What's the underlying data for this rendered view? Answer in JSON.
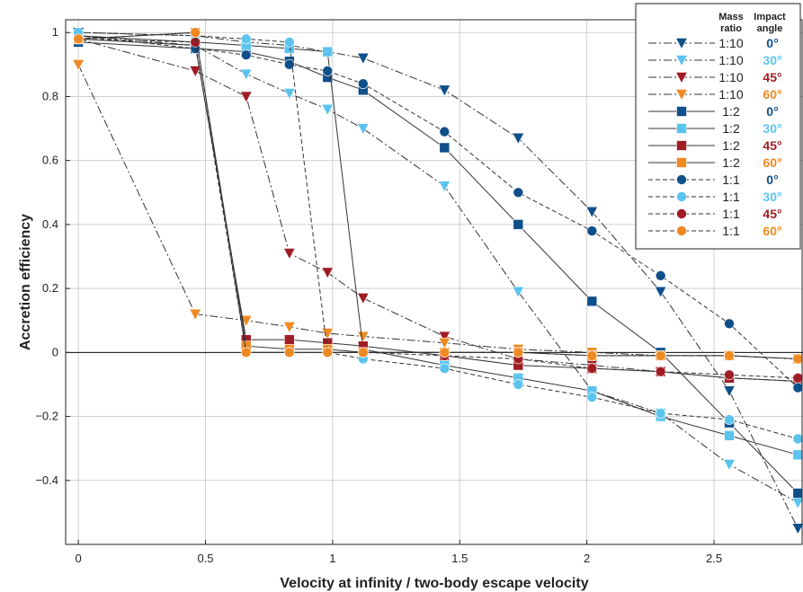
{
  "chart_data": {
    "type": "line",
    "xlabel": "Velocity at infinity / two-body escape velocity",
    "ylabel": "Accretion efficiency",
    "xlim": [
      -0.05,
      2.85
    ],
    "ylim": [
      -0.6,
      1.04
    ],
    "xticks": [
      0,
      0.5,
      1,
      1.5,
      2,
      2.5
    ],
    "xtick_labels": [
      "0",
      "0.5",
      "1",
      "1.5",
      "2",
      "2.5"
    ],
    "yticks": [
      -0.4,
      -0.2,
      0,
      0.2,
      0.4,
      0.6,
      0.8,
      1
    ],
    "ytick_labels": [
      "−0.4",
      "−0.2",
      "0",
      "0.2",
      "0.4",
      "0.6",
      "0.8",
      "1"
    ],
    "grid": true,
    "legend": {
      "position": "top-right",
      "header_ratio": [
        "Mass",
        "ratio"
      ],
      "header_angle": [
        "Impact",
        "angle"
      ]
    },
    "colors": {
      "angle_0": "#0f4f8a",
      "angle_30": "#5bc4ee",
      "angle_45": "#a01c24",
      "angle_60": "#ef8a22"
    },
    "series": [
      {
        "ratio": "1:10",
        "angle": "0°",
        "marker": "triangle-down",
        "line": "dashdot",
        "color": "#0f4f8a",
        "x": [
          0,
          0.46,
          0.66,
          0.83,
          0.98,
          1.12,
          1.44,
          1.73,
          2.02,
          2.29,
          2.56,
          2.83
        ],
        "y": [
          1.0,
          0.99,
          0.97,
          0.96,
          0.94,
          0.92,
          0.82,
          0.67,
          0.44,
          0.19,
          -0.12,
          -0.55
        ]
      },
      {
        "ratio": "1:10",
        "angle": "30°",
        "marker": "triangle-down",
        "line": "dashdot",
        "color": "#5bc4ee",
        "x": [
          0,
          0.46,
          0.66,
          0.83,
          0.98,
          1.12,
          1.44,
          1.73,
          2.02,
          2.29,
          2.56,
          2.83
        ],
        "y": [
          0.99,
          0.96,
          0.87,
          0.81,
          0.76,
          0.7,
          0.52,
          0.19,
          -0.12,
          -0.19,
          -0.35,
          -0.47
        ]
      },
      {
        "ratio": "1:10",
        "angle": "45°",
        "marker": "triangle-down",
        "line": "dashdot",
        "color": "#a01c24",
        "x": [
          0,
          0.46,
          0.66,
          0.83,
          0.98,
          1.12,
          1.44,
          1.73,
          2.02,
          2.29,
          2.56,
          2.83
        ],
        "y": [
          0.98,
          0.88,
          0.8,
          0.31,
          0.25,
          0.17,
          0.05,
          -0.02,
          -0.04,
          -0.06,
          -0.08,
          -0.09
        ]
      },
      {
        "ratio": "1:10",
        "angle": "60°",
        "marker": "triangle-down",
        "line": "dashdot",
        "color": "#ef8a22",
        "x": [
          0,
          0.46,
          0.66,
          0.83,
          0.98,
          1.12,
          1.44,
          1.73,
          2.02,
          2.29,
          2.56,
          2.83
        ],
        "y": [
          0.9,
          0.12,
          0.1,
          0.08,
          0.06,
          0.05,
          0.03,
          0.01,
          0.0,
          -0.01,
          -0.01,
          -0.02
        ]
      },
      {
        "ratio": "1:2",
        "angle": "0°",
        "marker": "square",
        "line": "solid",
        "color": "#0f4f8a",
        "x": [
          0,
          0.46,
          0.66,
          0.83,
          0.98,
          1.12,
          1.44,
          1.73,
          2.02,
          2.29,
          2.56,
          2.83
        ],
        "y": [
          0.97,
          0.95,
          0.94,
          0.91,
          0.86,
          0.82,
          0.64,
          0.4,
          0.16,
          0.0,
          -0.22,
          -0.44
        ]
      },
      {
        "ratio": "1:2",
        "angle": "30°",
        "marker": "square",
        "line": "solid",
        "color": "#5bc4ee",
        "x": [
          0,
          0.46,
          0.66,
          0.83,
          0.98,
          1.12,
          1.44,
          1.73,
          2.02,
          2.29,
          2.56,
          2.83
        ],
        "y": [
          0.99,
          0.97,
          0.96,
          0.95,
          0.94,
          0.01,
          -0.04,
          -0.08,
          -0.12,
          -0.2,
          -0.26,
          -0.32
        ]
      },
      {
        "ratio": "1:2",
        "angle": "45°",
        "marker": "square",
        "line": "solid",
        "color": "#a01c24",
        "x": [
          0,
          0.46,
          0.66,
          0.83,
          0.98,
          1.12,
          1.44,
          1.73,
          2.02,
          2.29,
          2.56,
          2.83
        ],
        "y": [
          0.98,
          0.96,
          0.04,
          0.04,
          0.03,
          0.02,
          -0.01,
          -0.04,
          -0.05,
          -0.06,
          -0.08,
          -0.09
        ]
      },
      {
        "ratio": "1:2",
        "angle": "60°",
        "marker": "square",
        "line": "solid",
        "color": "#ef8a22",
        "x": [
          0,
          0.46,
          0.66,
          0.83,
          0.98,
          1.12,
          1.44,
          1.73,
          2.02,
          2.29,
          2.56,
          2.83
        ],
        "y": [
          0.98,
          1.0,
          0.02,
          0.01,
          0.01,
          0.0,
          0.0,
          0.0,
          -0.01,
          -0.01,
          -0.01,
          -0.02
        ]
      },
      {
        "ratio": "1:1",
        "angle": "0°",
        "marker": "circle",
        "line": "dashed",
        "color": "#0f4f8a",
        "x": [
          0,
          0.46,
          0.66,
          0.83,
          0.98,
          1.12,
          1.44,
          1.73,
          2.02,
          2.29,
          2.56,
          2.83
        ],
        "y": [
          0.99,
          0.95,
          0.93,
          0.9,
          0.88,
          0.84,
          0.69,
          0.5,
          0.38,
          0.24,
          0.09,
          -0.11
        ]
      },
      {
        "ratio": "1:1",
        "angle": "30°",
        "marker": "circle",
        "line": "dashed",
        "color": "#5bc4ee",
        "x": [
          0,
          0.46,
          0.66,
          0.83,
          0.98,
          1.12,
          1.44,
          1.73,
          2.02,
          2.29,
          2.56,
          2.83
        ],
        "y": [
          1.0,
          0.99,
          0.98,
          0.97,
          0.0,
          -0.02,
          -0.05,
          -0.1,
          -0.14,
          -0.19,
          -0.21,
          -0.27
        ]
      },
      {
        "ratio": "1:1",
        "angle": "45°",
        "marker": "circle",
        "line": "dashed",
        "color": "#a01c24",
        "x": [
          0,
          0.46,
          0.66,
          0.83,
          0.98,
          1.12,
          1.44,
          1.73,
          2.02,
          2.29,
          2.56,
          2.83
        ],
        "y": [
          0.98,
          0.97,
          0.0,
          0.0,
          0.0,
          0.0,
          -0.01,
          -0.02,
          -0.05,
          -0.06,
          -0.07,
          -0.08
        ]
      },
      {
        "ratio": "1:1",
        "angle": "60°",
        "marker": "circle",
        "line": "dashed",
        "color": "#ef8a22",
        "x": [
          0,
          0.46,
          0.66,
          0.83,
          0.98,
          1.12,
          1.44,
          1.73,
          2.02,
          2.29,
          2.56,
          2.83
        ],
        "y": [
          0.98,
          1.0,
          0.0,
          0.0,
          0.0,
          0.0,
          0.0,
          0.0,
          -0.01,
          -0.01,
          -0.01,
          -0.02
        ]
      }
    ]
  }
}
